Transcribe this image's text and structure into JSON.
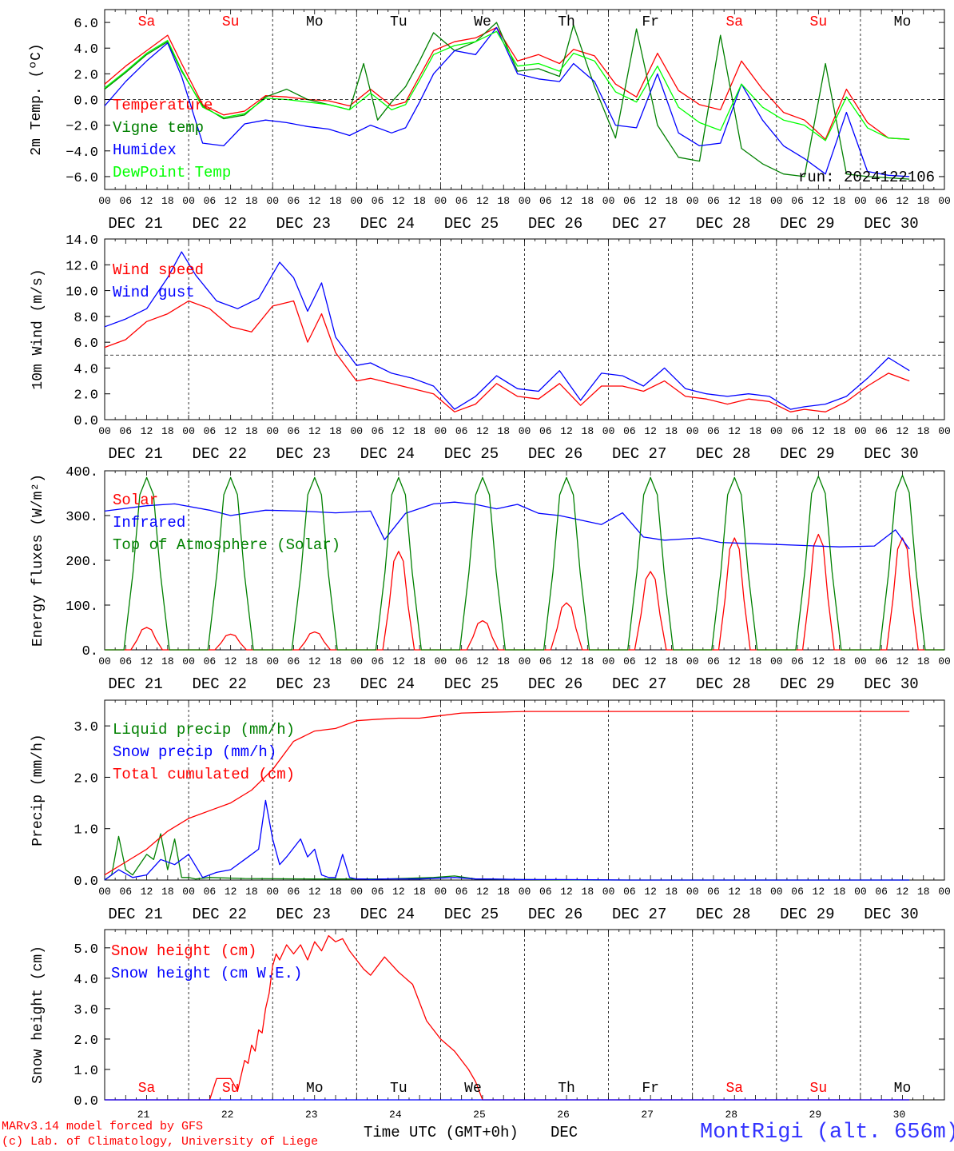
{
  "chart_data": [
    {
      "type": "line",
      "ylabel": "2m Temp. (ºC)",
      "ylim": [
        -7,
        7
      ],
      "yticks": [
        "6.0",
        "4.0",
        "2.0",
        "0.0",
        "−2.0",
        "−4.0",
        "−6.0"
      ],
      "run_label": "run: 2024122106",
      "series": [
        {
          "name": "Temperature",
          "color": "#ff0000",
          "x": [
            0,
            6,
            12,
            18,
            22,
            28,
            34,
            40,
            46,
            52,
            58,
            64,
            70,
            76,
            82,
            86,
            90,
            94,
            100,
            106,
            112,
            118,
            124,
            130,
            134,
            140,
            146,
            152,
            158,
            164,
            170,
            176,
            182,
            188,
            194,
            200,
            206,
            212,
            218,
            224,
            230
          ],
          "y": [
            1.2,
            2.6,
            3.8,
            5.0,
            2.8,
            -0.4,
            -1.2,
            -0.9,
            0.3,
            0.2,
            0.0,
            -0.1,
            -0.5,
            0.8,
            -0.5,
            -0.2,
            1.8,
            3.8,
            4.5,
            4.8,
            5.6,
            3.0,
            3.5,
            2.8,
            3.9,
            3.4,
            1.2,
            0.2,
            3.6,
            0.7,
            -0.4,
            -0.8,
            3.0,
            0.8,
            -1.0,
            -1.6,
            -3.1,
            0.8,
            -1.8,
            -3.0,
            -3.1
          ]
        },
        {
          "name": "Vigne temp",
          "color": "#008000",
          "x": [
            0,
            6,
            12,
            18,
            22,
            28,
            34,
            40,
            46,
            52,
            58,
            64,
            70,
            74,
            78,
            82,
            86,
            90,
            94,
            100,
            106,
            112,
            118,
            124,
            130,
            134,
            140,
            146,
            152,
            158,
            164,
            170,
            176,
            182,
            188,
            194,
            200,
            206,
            212,
            218,
            224,
            230
          ],
          "y": [
            0.8,
            2.1,
            3.5,
            4.5,
            2.2,
            -0.5,
            -1.5,
            -1.2,
            0.2,
            0.8,
            0.0,
            -0.4,
            -0.8,
            2.8,
            -1.6,
            -0.2,
            1.0,
            3.0,
            5.2,
            3.8,
            4.5,
            6.0,
            2.2,
            2.4,
            1.8,
            5.8,
            1.0,
            -3.0,
            5.5,
            -2.0,
            -4.5,
            -4.8,
            5.0,
            -3.8,
            -5.0,
            -5.8,
            -6.0,
            2.8,
            -5.8,
            -6.0,
            -6.1,
            -6.2
          ]
        },
        {
          "name": "Humidex",
          "color": "#0000ff",
          "x": [
            0,
            6,
            12,
            18,
            22,
            28,
            34,
            40,
            46,
            52,
            58,
            64,
            70,
            76,
            82,
            86,
            90,
            94,
            100,
            106,
            112,
            118,
            124,
            130,
            134,
            140,
            146,
            152,
            158,
            164,
            170,
            176,
            182,
            188,
            194,
            200,
            206,
            212,
            218,
            224,
            230
          ],
          "y": [
            -0.5,
            1.4,
            3.0,
            4.4,
            1.8,
            -3.4,
            -3.6,
            -1.9,
            -1.6,
            -1.8,
            -2.1,
            -2.3,
            -2.8,
            -2.0,
            -2.6,
            -2.2,
            -0.2,
            2.0,
            3.8,
            3.5,
            5.6,
            2.0,
            1.6,
            1.4,
            2.8,
            1.4,
            -2.0,
            -2.2,
            2.0,
            -2.6,
            -3.6,
            -3.4,
            1.2,
            -1.6,
            -3.6,
            -4.6,
            -5.8,
            -1.0,
            -5.6,
            -5.9,
            -6.0
          ]
        },
        {
          "name": "DewPoint Temp",
          "color": "#00ff00",
          "x": [
            0,
            6,
            12,
            18,
            22,
            28,
            34,
            40,
            46,
            52,
            58,
            64,
            70,
            76,
            82,
            86,
            90,
            94,
            100,
            106,
            112,
            118,
            124,
            130,
            134,
            140,
            146,
            152,
            158,
            164,
            170,
            176,
            182,
            188,
            194,
            200,
            206,
            212,
            218,
            224,
            230
          ],
          "y": [
            0.9,
            2.2,
            3.6,
            4.6,
            2.3,
            -0.6,
            -1.4,
            -1.1,
            0.1,
            0.0,
            -0.2,
            -0.4,
            -0.8,
            0.5,
            -0.8,
            -0.4,
            1.5,
            3.5,
            4.2,
            4.5,
            5.3,
            2.6,
            2.8,
            2.2,
            3.6,
            3.0,
            0.6,
            -0.2,
            2.6,
            -0.6,
            -1.8,
            -2.4,
            1.2,
            -0.6,
            -1.6,
            -2.0,
            -3.2,
            0.2,
            -2.2,
            -3.0,
            -3.1
          ]
        }
      ]
    },
    {
      "type": "line",
      "ylabel": "10m Wind (m/s)",
      "ylim": [
        0,
        14
      ],
      "yticks": [
        "14.0",
        "12.0",
        "10.0",
        "8.0",
        "6.0",
        "4.0",
        "2.0",
        "0.0"
      ],
      "series": [
        {
          "name": "Wind speed",
          "color": "#ff0000",
          "x": [
            0,
            6,
            12,
            18,
            24,
            30,
            36,
            42,
            48,
            54,
            58,
            62,
            66,
            72,
            76,
            82,
            88,
            94,
            100,
            106,
            112,
            118,
            124,
            130,
            136,
            142,
            148,
            154,
            160,
            166,
            172,
            178,
            184,
            190,
            196,
            200,
            206,
            212,
            218,
            224,
            230
          ],
          "y": [
            5.6,
            6.2,
            7.6,
            8.2,
            9.2,
            8.6,
            7.2,
            6.8,
            8.8,
            9.2,
            6.0,
            8.2,
            5.2,
            3.0,
            3.2,
            2.8,
            2.4,
            2.0,
            0.6,
            1.2,
            2.8,
            1.8,
            1.6,
            2.8,
            1.1,
            2.6,
            2.6,
            2.2,
            3.0,
            1.8,
            1.6,
            1.2,
            1.6,
            1.4,
            0.6,
            0.8,
            0.6,
            1.4,
            2.6,
            3.6,
            3.0
          ]
        },
        {
          "name": "Wind gust",
          "color": "#0000ff",
          "x": [
            0,
            6,
            12,
            18,
            22,
            26,
            32,
            38,
            44,
            50,
            54,
            58,
            62,
            66,
            72,
            76,
            82,
            88,
            94,
            100,
            106,
            112,
            118,
            124,
            130,
            136,
            142,
            148,
            154,
            160,
            166,
            172,
            178,
            184,
            190,
            196,
            200,
            206,
            212,
            218,
            224,
            230
          ],
          "y": [
            7.2,
            7.8,
            8.6,
            11.0,
            13.0,
            11.2,
            9.2,
            8.6,
            9.4,
            12.2,
            11.0,
            8.4,
            10.6,
            6.4,
            4.2,
            4.4,
            3.6,
            3.2,
            2.6,
            0.8,
            1.8,
            3.4,
            2.4,
            2.2,
            3.8,
            1.5,
            3.6,
            3.4,
            2.6,
            4.0,
            2.4,
            2.0,
            1.8,
            2.0,
            1.8,
            0.8,
            1.0,
            1.2,
            1.8,
            3.2,
            4.8,
            3.8
          ]
        }
      ],
      "reference_line": 5.0
    },
    {
      "type": "line",
      "ylabel": "Energy fluxes (W/m²)",
      "ylim": [
        0,
        400
      ],
      "yticks": [
        "400.",
        "300.",
        "200.",
        "100.",
        "0."
      ],
      "series": [
        {
          "name": "Solar",
          "color": "#ff0000",
          "peaks": [
            50,
            35,
            40,
            220,
            65,
            105,
            175,
            250,
            258,
            250
          ]
        },
        {
          "name": "Infrared",
          "color": "#0000ff",
          "x": [
            0,
            12,
            20,
            30,
            36,
            46,
            56,
            66,
            76,
            80,
            86,
            94,
            100,
            106,
            112,
            118,
            124,
            130,
            136,
            142,
            148,
            154,
            160,
            166,
            170,
            176,
            182,
            190,
            200,
            210,
            220,
            226,
            230
          ],
          "y": [
            310,
            322,
            326,
            312,
            300,
            312,
            310,
            306,
            310,
            246,
            305,
            326,
            330,
            325,
            315,
            325,
            305,
            300,
            290,
            280,
            306,
            252,
            245,
            248,
            250,
            240,
            238,
            236,
            233,
            230,
            232,
            268,
            225
          ]
        },
        {
          "name": "Top of Atmosphere (Solar)",
          "color": "#008000",
          "peaks": [
            385,
            385,
            385,
            385,
            385,
            385,
            385,
            385,
            388,
            390
          ]
        }
      ]
    },
    {
      "type": "line",
      "ylabel": "Precip (mm/h)",
      "ylim": [
        0,
        3.5
      ],
      "yticks": [
        "3.0",
        "2.0",
        "1.0",
        "0.0"
      ],
      "series": [
        {
          "name": "Liquid precip (mm/h)",
          "color": "#008000",
          "x": [
            0,
            2,
            4,
            6,
            8,
            10,
            12,
            14,
            16,
            18,
            20,
            22,
            24,
            26,
            30,
            40,
            60,
            80,
            94,
            100,
            106,
            118,
            140,
            230
          ],
          "y": [
            0,
            0.1,
            0.85,
            0.2,
            0.1,
            0.3,
            0.5,
            0.4,
            0.9,
            0.2,
            0.8,
            0.05,
            0.05,
            0.02,
            0.05,
            0.03,
            0.02,
            0.02,
            0.05,
            0.08,
            0.02,
            0.01,
            0,
            0
          ]
        },
        {
          "name": "Snow precip (mm/h)",
          "color": "#0000ff",
          "x": [
            0,
            4,
            8,
            12,
            16,
            20,
            24,
            28,
            32,
            36,
            40,
            44,
            46,
            48,
            50,
            52,
            56,
            58,
            60,
            62,
            64,
            66,
            68,
            70,
            72,
            74,
            76,
            80,
            90,
            100,
            106,
            110,
            120,
            130,
            150,
            230
          ],
          "y": [
            0,
            0.2,
            0.05,
            0.1,
            0.4,
            0.3,
            0.5,
            0.05,
            0.15,
            0.2,
            0.4,
            0.6,
            1.55,
            0.8,
            0.3,
            0.45,
            0.8,
            0.45,
            0.6,
            0.1,
            0.05,
            0.05,
            0.5,
            0.05,
            0.02,
            0.02,
            0.01,
            0.02,
            0.02,
            0.05,
            0.02,
            0.02,
            0.01,
            0.01,
            0,
            0
          ]
        },
        {
          "name": "Total cumulated (cm)",
          "color": "#ff0000",
          "x": [
            0,
            6,
            12,
            18,
            24,
            30,
            36,
            42,
            48,
            54,
            60,
            66,
            72,
            78,
            84,
            90,
            96,
            102,
            108,
            120,
            140,
            160,
            180,
            200,
            230
          ],
          "y": [
            0.1,
            0.35,
            0.6,
            0.95,
            1.2,
            1.35,
            1.5,
            1.75,
            2.15,
            2.7,
            2.9,
            2.95,
            3.1,
            3.13,
            3.15,
            3.15,
            3.2,
            3.25,
            3.26,
            3.28,
            3.28,
            3.28,
            3.28,
            3.28,
            3.28
          ]
        }
      ]
    },
    {
      "type": "line",
      "ylabel": "Snow height (cm)",
      "ylim": [
        0,
        5.6
      ],
      "yticks": [
        "5.0",
        "4.0",
        "3.0",
        "2.0",
        "1.0",
        "0.0"
      ],
      "series": [
        {
          "name": "Snow height (cm)",
          "color": "#ff0000",
          "x": [
            0,
            30,
            32,
            36,
            38,
            40,
            41,
            42,
            43,
            44,
            45,
            46,
            47,
            48,
            49,
            50,
            52,
            54,
            56,
            58,
            60,
            62,
            64,
            66,
            68,
            70,
            72,
            74,
            76,
            80,
            84,
            88,
            92,
            96,
            100,
            104,
            106,
            108,
            110,
            230
          ],
          "y": [
            0,
            0,
            0.7,
            0.7,
            0.3,
            1.3,
            1.2,
            1.8,
            1.6,
            2.3,
            2.2,
            3.0,
            3.5,
            4.4,
            4.8,
            4.6,
            5.1,
            4.8,
            5.1,
            4.6,
            5.2,
            4.9,
            5.4,
            5.2,
            5.3,
            4.9,
            4.6,
            4.3,
            4.1,
            4.7,
            4.2,
            3.8,
            2.6,
            2.0,
            1.6,
            1.0,
            0.6,
            0.0,
            0.0,
            0.0
          ]
        },
        {
          "name": "Snow height (cm W.E.)",
          "color": "#0000ff",
          "x": [
            0,
            230
          ],
          "y": [
            0,
            0
          ]
        }
      ],
      "day_numbers": [
        "21",
        "22",
        "23",
        "24",
        "25",
        "26",
        "27",
        "28",
        "29",
        "30"
      ]
    }
  ],
  "x_axis": {
    "hour_labels": [
      "00",
      "06",
      "12",
      "18"
    ],
    "date_labels": [
      "DEC 21",
      "DEC 22",
      "DEC 23",
      "DEC 24",
      "DEC 25",
      "DEC 26",
      "DEC 27",
      "DEC 28",
      "DEC 29",
      "DEC 30"
    ],
    "day_names": [
      "Sa",
      "Su",
      "Mo",
      "Tu",
      "We",
      "Th",
      "Fr",
      "Sa",
      "Su",
      "Mo"
    ],
    "day_name_colors": [
      "#ff0000",
      "#ff0000",
      "#000000",
      "#000000",
      "#000000",
      "#000000",
      "#000000",
      "#ff0000",
      "#ff0000",
      "#000000"
    ]
  },
  "footer": {
    "credit_line1": "MARv3.14 model forced by GFS",
    "credit_line2": "(c) Lab. of Climatology, University of Liege",
    "xlabel": "Time UTC (GMT+0h)",
    "month": "DEC",
    "station": "MontRigi (alt. 656m)"
  }
}
